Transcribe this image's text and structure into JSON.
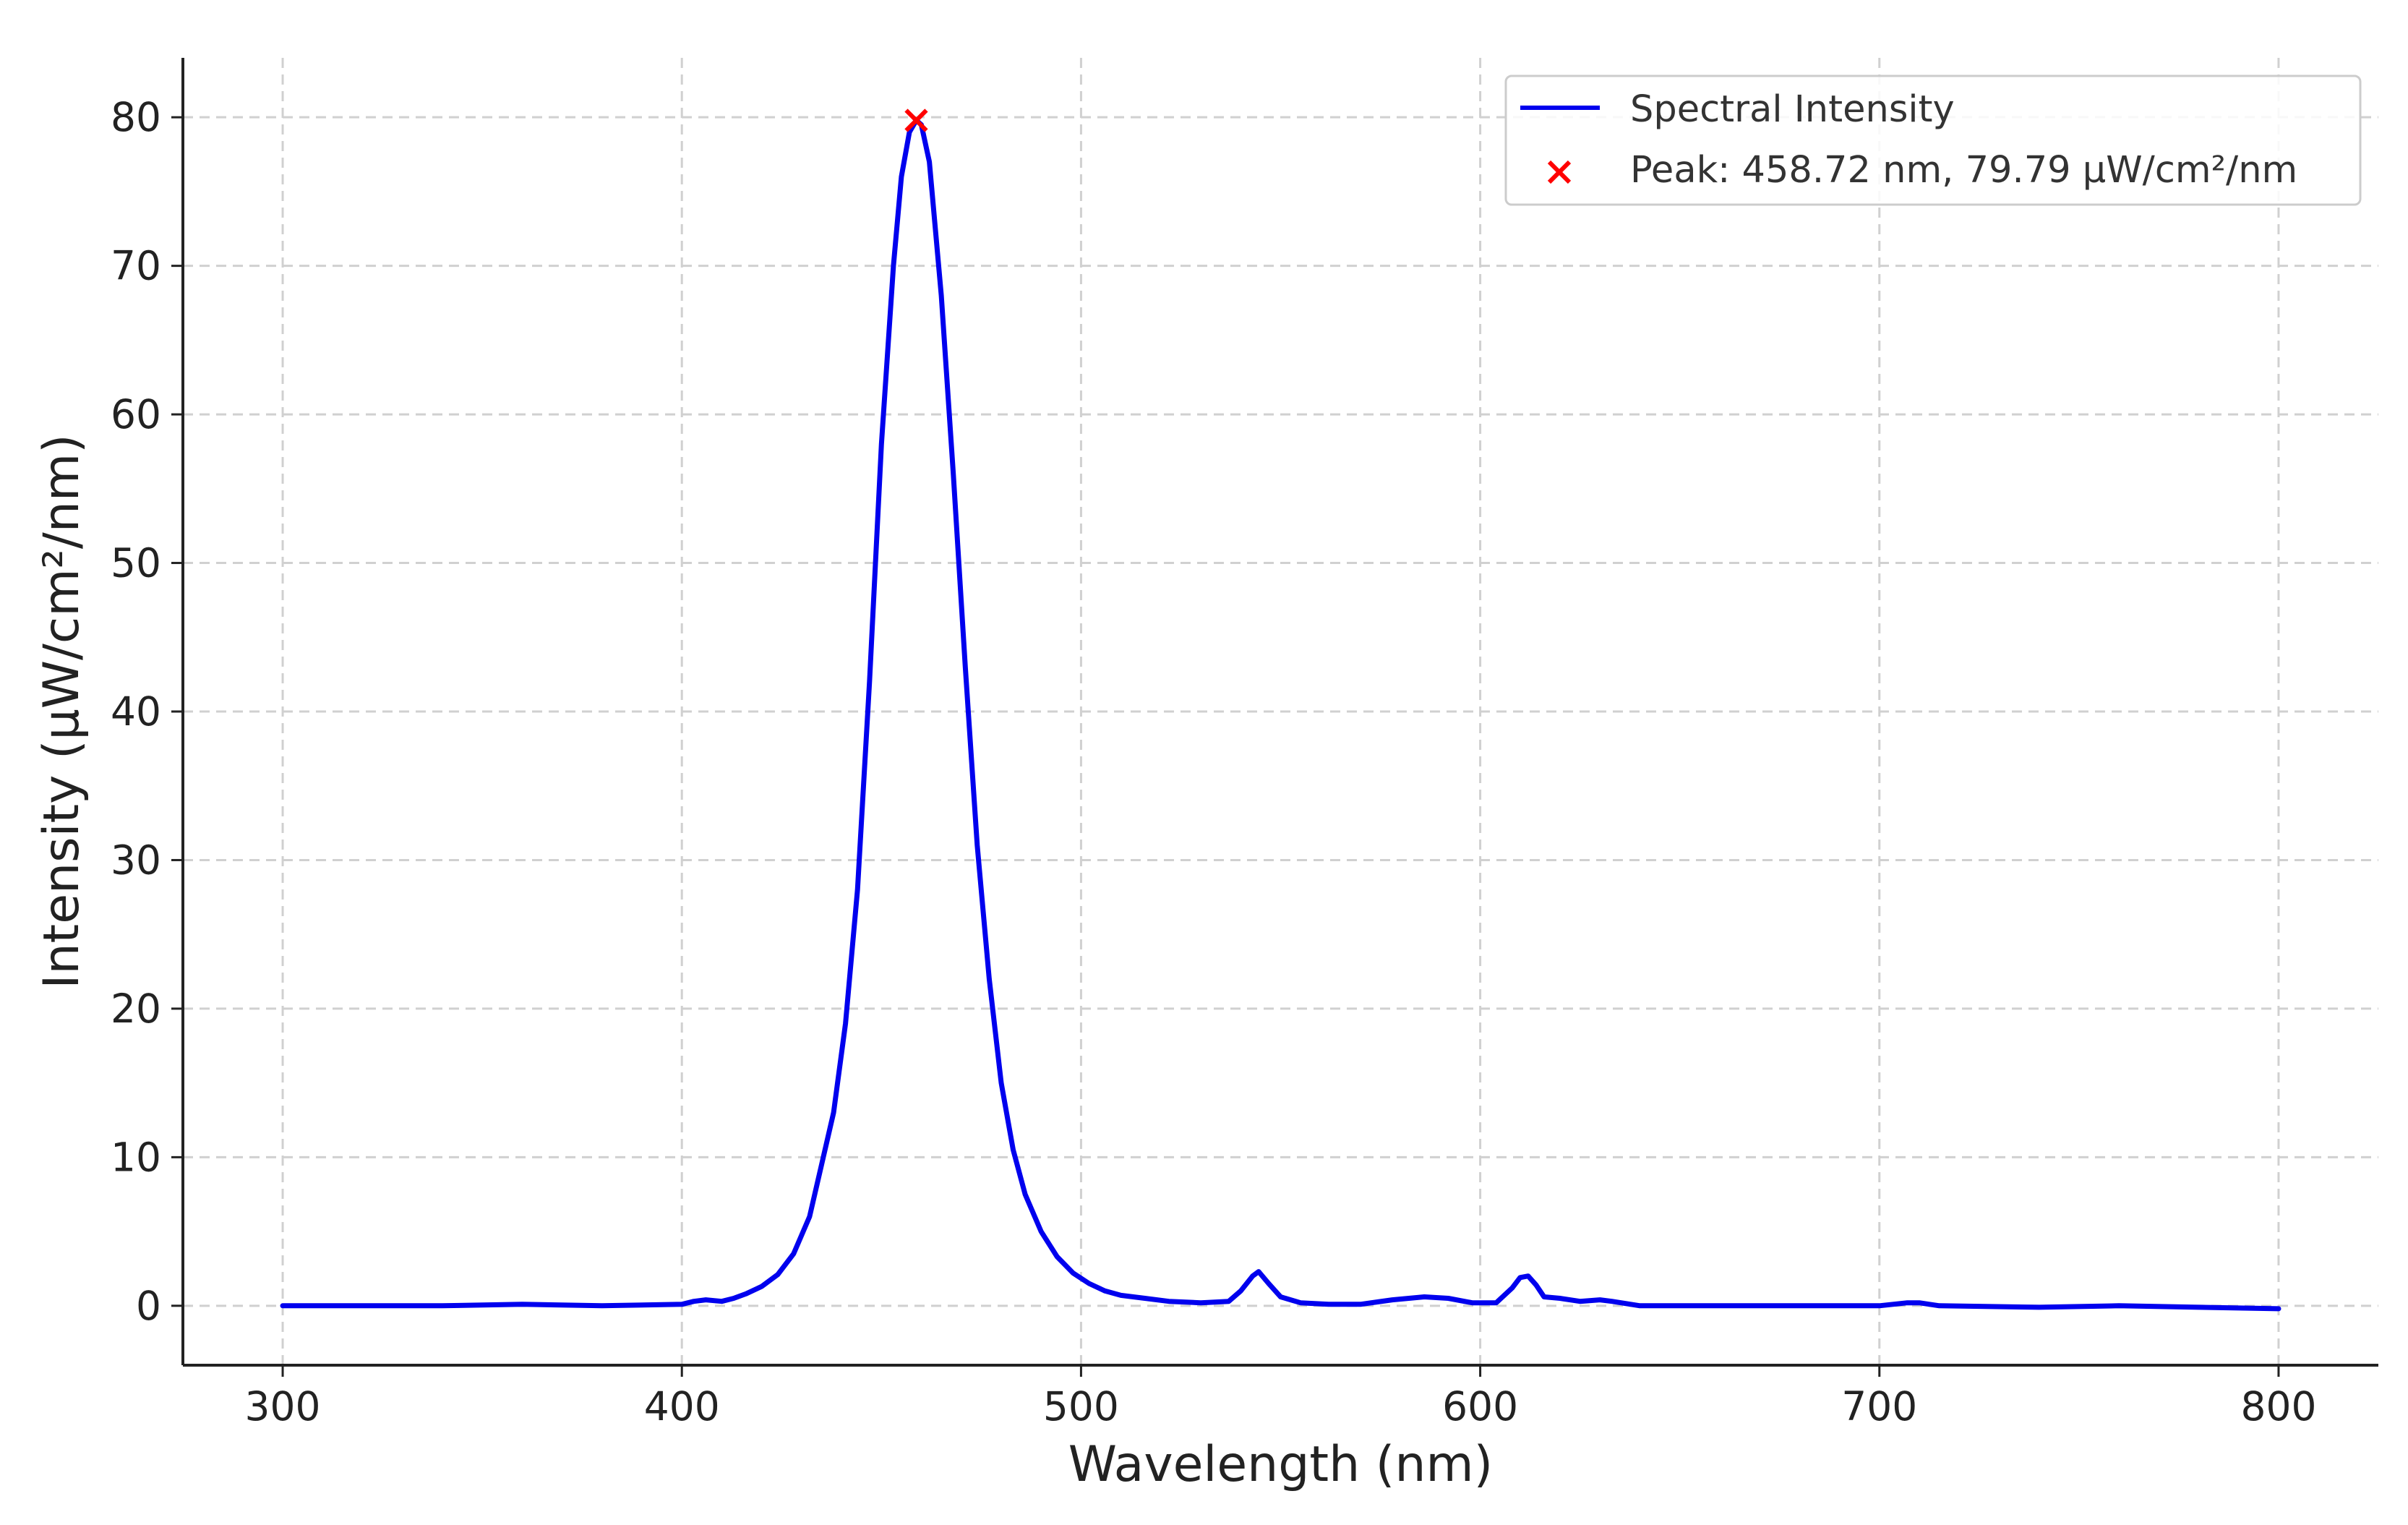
{
  "chart_data": {
    "type": "line",
    "title": "",
    "xlabel": "Wavelength (nm)",
    "ylabel": "Intensity (μW/cm²/nm)",
    "xlim": [
      275,
      825
    ],
    "ylim": [
      -4,
      84
    ],
    "x_ticks": [
      "300",
      "400",
      "500",
      "600",
      "700",
      "800"
    ],
    "y_ticks": [
      "0",
      "10",
      "20",
      "30",
      "40",
      "50",
      "60",
      "70",
      "80"
    ],
    "grid": true,
    "legend_position": "top-right",
    "colors": {
      "series": "#0000ee",
      "peak": "#ff0000"
    },
    "series": [
      {
        "name": "Spectral Intensity",
        "x": [
          300,
          340,
          360,
          380,
          400,
          403,
          406,
          410,
          413,
          416,
          420,
          424,
          428,
          432,
          435,
          438,
          441,
          444,
          447,
          450,
          453,
          455,
          457,
          458.72,
          460,
          462,
          465,
          468,
          471,
          474,
          477,
          480,
          483,
          486,
          490,
          494,
          498,
          502,
          506,
          510,
          516,
          522,
          530,
          537,
          540,
          543,
          544.5,
          547,
          550,
          555,
          562,
          570,
          578,
          586,
          592,
          598,
          604,
          608,
          610,
          612,
          614,
          616,
          620,
          625,
          630,
          633,
          640,
          660,
          700,
          707,
          710,
          715,
          740,
          760,
          780,
          800
        ],
        "y": [
          0,
          0,
          0.1,
          0,
          0.1,
          0.3,
          0.4,
          0.3,
          0.5,
          0.8,
          1.3,
          2.1,
          3.5,
          6.0,
          9.5,
          13.0,
          19.0,
          28.0,
          42.0,
          58.0,
          70.0,
          76.0,
          79.0,
          79.79,
          79.5,
          77.0,
          68.0,
          56.0,
          43.0,
          31.0,
          22.0,
          15.0,
          10.5,
          7.5,
          5.0,
          3.3,
          2.2,
          1.5,
          1.0,
          0.7,
          0.5,
          0.3,
          0.2,
          0.3,
          1.0,
          2.0,
          2.3,
          1.5,
          0.6,
          0.2,
          0.1,
          0.1,
          0.4,
          0.6,
          0.5,
          0.2,
          0.2,
          1.2,
          1.9,
          2.0,
          1.4,
          0.6,
          0.5,
          0.3,
          0.4,
          0.3,
          0,
          0,
          0,
          0.2,
          0.2,
          0,
          -0.1,
          0,
          -0.1,
          -0.2
        ]
      }
    ],
    "peak": {
      "label": "Peak: 458.72 nm, 79.79 μW/cm²/nm",
      "x": 458.72,
      "y": 79.79
    }
  }
}
